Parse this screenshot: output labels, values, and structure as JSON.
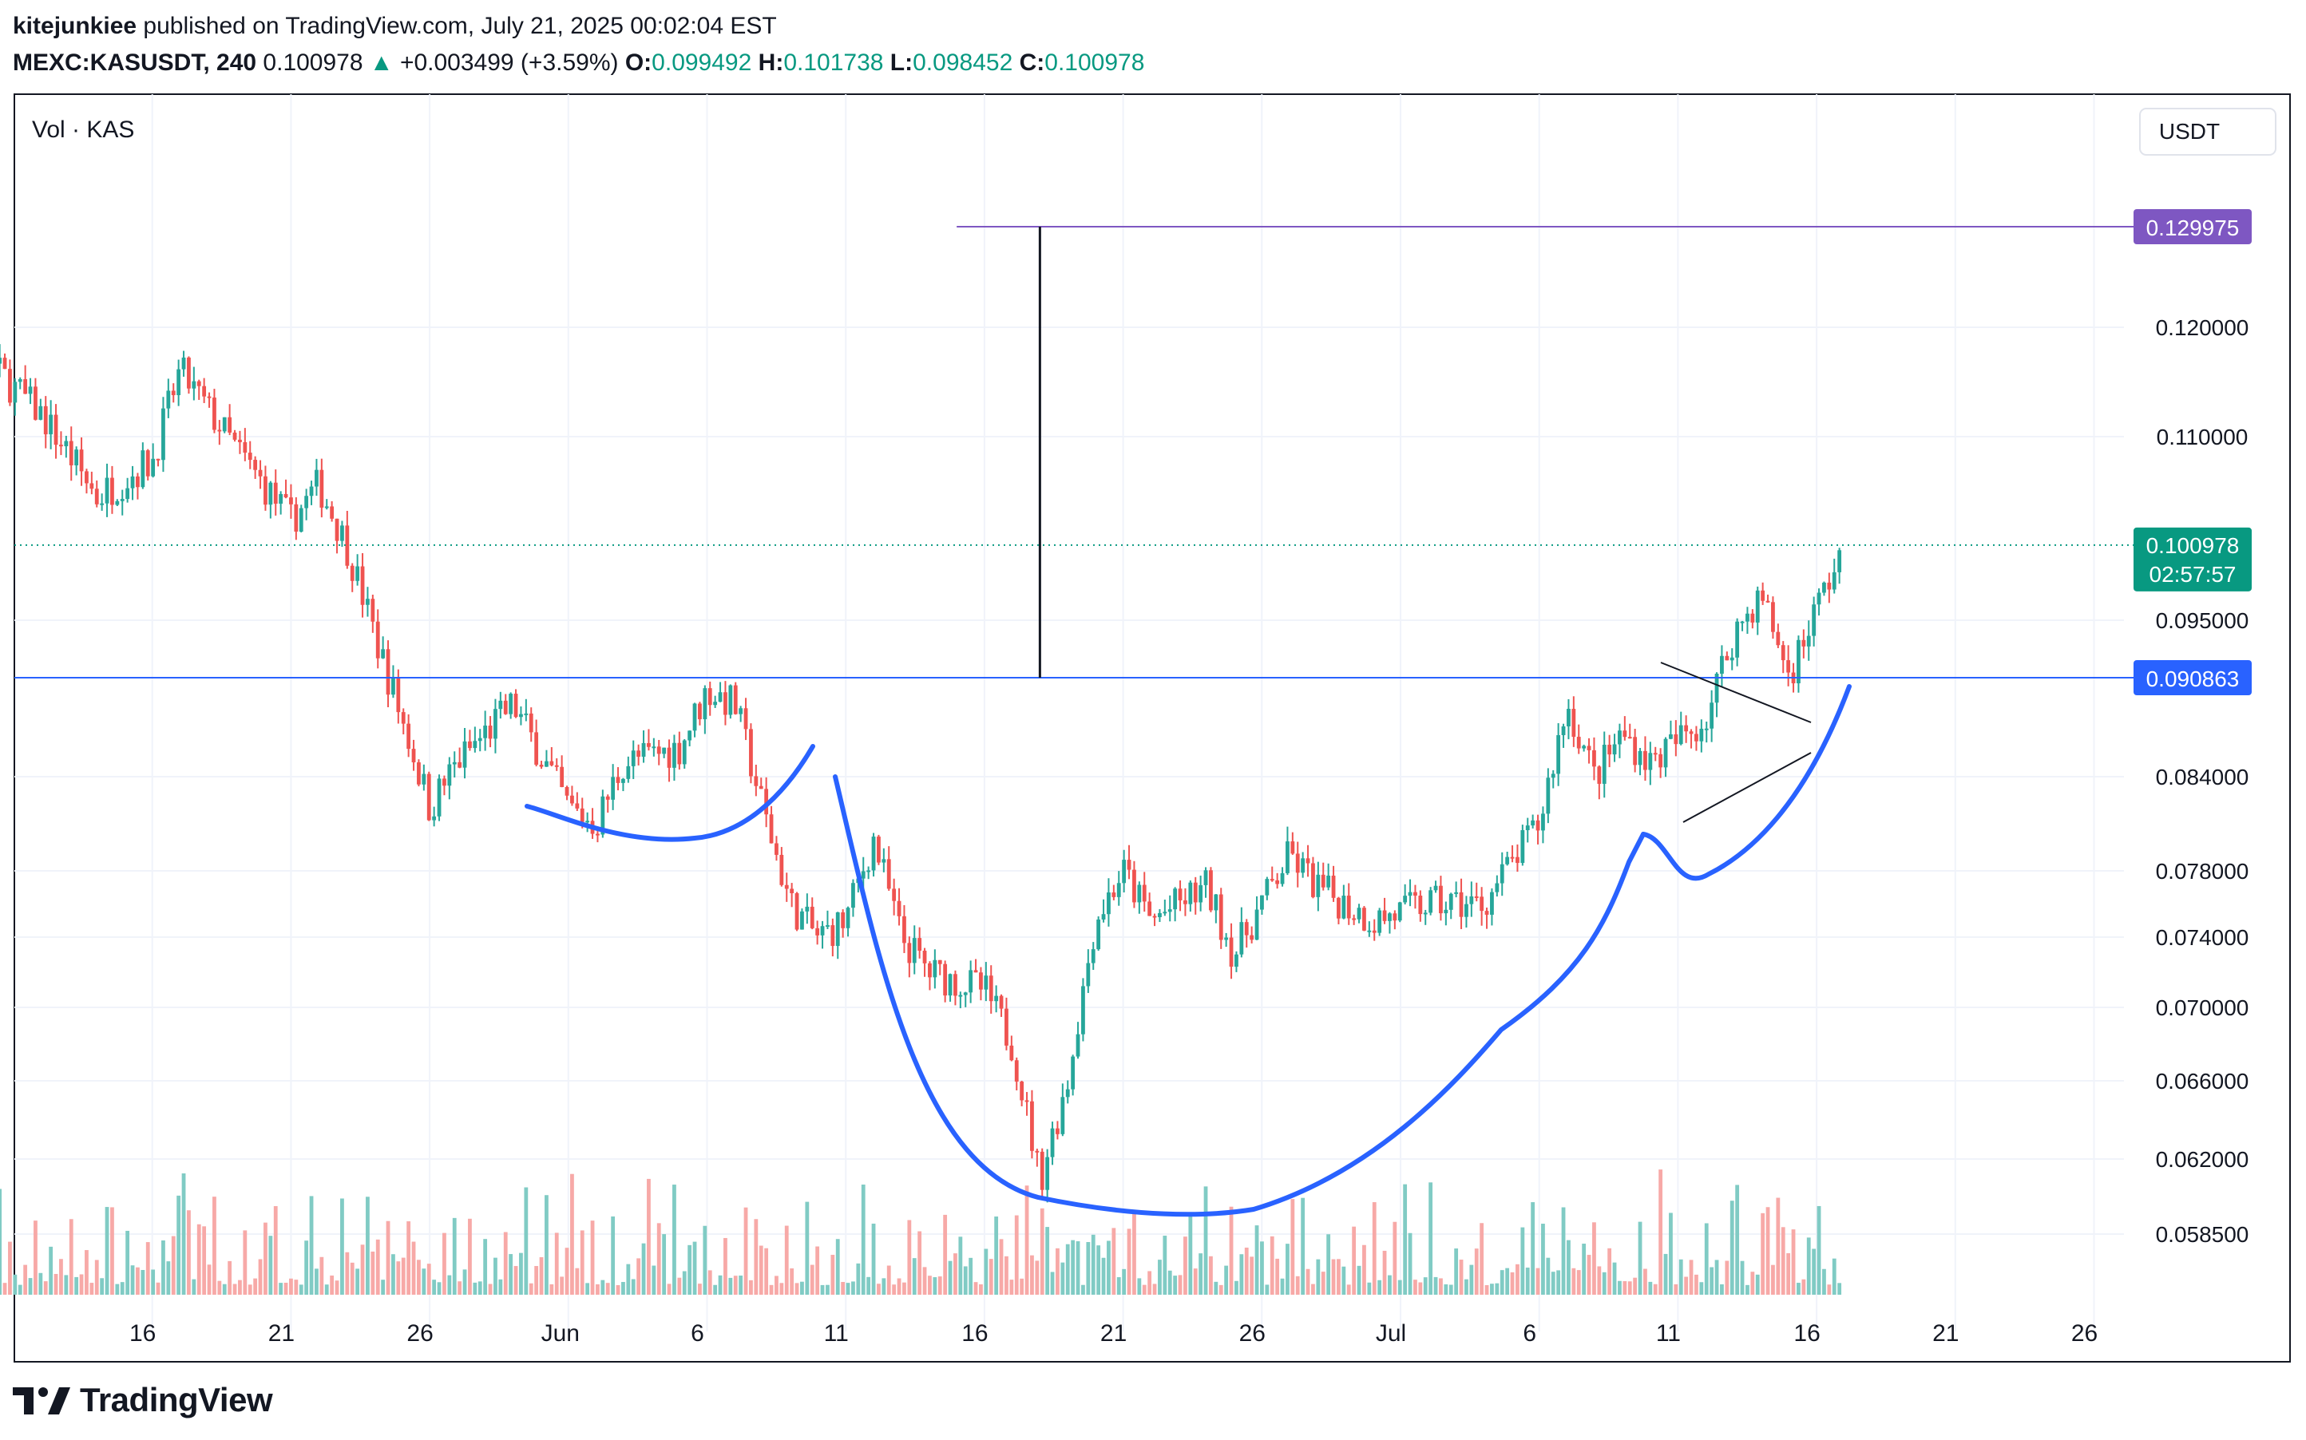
{
  "header": {
    "author": "kitejunkiee",
    "published_text": "published on TradingView.com, July 21, 2025 00:02:04 EST",
    "symbol": "MEXC:KASUSDT, 240",
    "last": "0.100978",
    "change": "+0.003499 (+3.59%)",
    "o_label": "O:",
    "o_value": "0.099492",
    "h_label": "H:",
    "h_value": "0.101738",
    "l_label": "L:",
    "l_value": "0.098452",
    "c_label": "C:",
    "c_value": "0.100978"
  },
  "footer": {
    "brand": "TradingView"
  },
  "chart_data": {
    "type": "candlestick",
    "symbol": "MEXC:KASUSDT",
    "interval": "240",
    "currency": "USDT",
    "volume_label": "Vol · KAS",
    "price_scale": [
      {
        "label": "0.120000",
        "value": 0.12
      },
      {
        "label": "0.110000",
        "value": 0.11
      },
      {
        "label": "0.095000",
        "value": 0.095
      },
      {
        "label": "0.084000",
        "value": 0.084
      },
      {
        "label": "0.078000",
        "value": 0.078
      },
      {
        "label": "0.074000",
        "value": 0.074
      },
      {
        "label": "0.070000",
        "value": 0.07
      },
      {
        "label": "0.066000",
        "value": 0.066
      },
      {
        "label": "0.062000",
        "value": 0.062
      },
      {
        "label": "0.058500",
        "value": 0.0585
      }
    ],
    "time_labels": [
      "16",
      "21",
      "26",
      "Jun",
      "6",
      "11",
      "16",
      "21",
      "26",
      "Jul",
      "6",
      "11",
      "16",
      "21",
      "26"
    ],
    "price_line": {
      "value": 0.100978,
      "label": "0.100978",
      "countdown": "02:57:57",
      "color": "#089981"
    },
    "horizontal_lines": [
      {
        "value": 0.090863,
        "label": "0.090863",
        "color": "#2962ff"
      },
      {
        "value": 0.129975,
        "label": "0.129975",
        "color": "#7e57c2"
      }
    ],
    "keypoints": [
      {
        "date": "2025-05-12",
        "price": 0.118
      },
      {
        "date": "2025-05-15",
        "price": 0.117
      },
      {
        "date": "2025-05-17",
        "price": 0.112
      },
      {
        "date": "2025-05-19",
        "price": 0.105
      },
      {
        "date": "2025-05-21",
        "price": 0.108
      },
      {
        "date": "2025-05-22",
        "price": 0.116
      },
      {
        "date": "2025-05-24",
        "price": 0.109
      },
      {
        "date": "2025-05-26",
        "price": 0.103
      },
      {
        "date": "2025-05-27",
        "price": 0.106
      },
      {
        "date": "2025-05-28",
        "price": 0.101
      },
      {
        "date": "2025-05-29",
        "price": 0.094
      },
      {
        "date": "2025-05-31",
        "price": 0.082
      },
      {
        "date": "2025-06-01",
        "price": 0.085
      },
      {
        "date": "2025-06-03",
        "price": 0.089
      },
      {
        "date": "2025-06-05",
        "price": 0.082
      },
      {
        "date": "2025-06-06",
        "price": 0.081
      },
      {
        "date": "2025-06-07",
        "price": 0.085
      },
      {
        "date": "2025-06-09",
        "price": 0.086
      },
      {
        "date": "2025-06-10",
        "price": 0.09
      },
      {
        "date": "2025-06-11",
        "price": 0.089
      },
      {
        "date": "2025-06-12",
        "price": 0.082
      },
      {
        "date": "2025-06-13",
        "price": 0.076
      },
      {
        "date": "2025-06-14",
        "price": 0.074
      },
      {
        "date": "2025-06-15",
        "price": 0.075
      },
      {
        "date": "2025-06-16",
        "price": 0.08
      },
      {
        "date": "2025-06-17",
        "price": 0.074
      },
      {
        "date": "2025-06-18",
        "price": 0.072
      },
      {
        "date": "2025-06-20",
        "price": 0.071
      },
      {
        "date": "2025-06-21",
        "price": 0.068
      },
      {
        "date": "2025-06-22",
        "price": 0.061
      },
      {
        "date": "2025-06-23",
        "price": 0.066
      },
      {
        "date": "2025-06-24",
        "price": 0.075
      },
      {
        "date": "2025-06-25",
        "price": 0.078
      },
      {
        "date": "2025-06-26",
        "price": 0.075
      },
      {
        "date": "2025-06-28",
        "price": 0.077
      },
      {
        "date": "2025-06-29",
        "price": 0.073
      },
      {
        "date": "2025-07-01",
        "price": 0.079
      },
      {
        "date": "2025-07-02",
        "price": 0.077
      },
      {
        "date": "2025-07-04",
        "price": 0.075
      },
      {
        "date": "2025-07-06",
        "price": 0.076
      },
      {
        "date": "2025-07-08",
        "price": 0.076
      },
      {
        "date": "2025-07-10",
        "price": 0.081
      },
      {
        "date": "2025-07-11",
        "price": 0.089
      },
      {
        "date": "2025-07-12",
        "price": 0.084
      },
      {
        "date": "2025-07-13",
        "price": 0.087
      },
      {
        "date": "2025-07-14",
        "price": 0.085
      },
      {
        "date": "2025-07-16",
        "price": 0.088
      },
      {
        "date": "2025-07-17",
        "price": 0.094
      },
      {
        "date": "2025-07-18",
        "price": 0.097
      },
      {
        "date": "2025-07-19",
        "price": 0.091
      },
      {
        "date": "2025-07-20",
        "price": 0.096
      },
      {
        "date": "2025-07-21",
        "price": 0.100978
      }
    ],
    "colors": {
      "up": "#26a69a",
      "down": "#ef5350",
      "vol_up": "#80cbc4",
      "vol_down": "#f7a9a7",
      "drawing": "#2962ff",
      "pattern": "#131722"
    },
    "grid": true
  }
}
